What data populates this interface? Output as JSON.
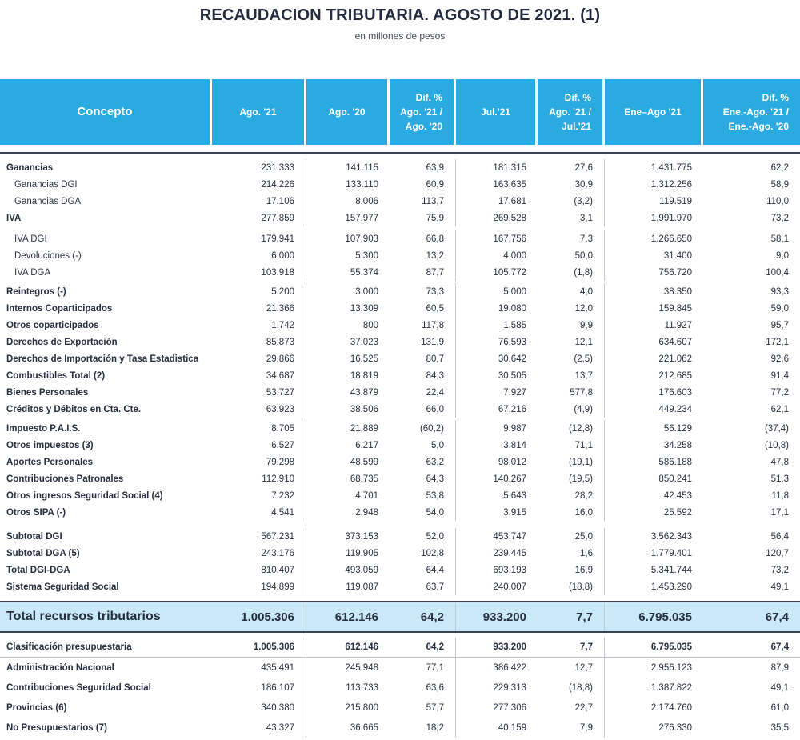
{
  "title": "RECAUDACION TRIBUTARIA. AGOSTO DE 2021. (1)",
  "subtitle": "en millones de pesos",
  "colors": {
    "header_bg": "#29abe2",
    "header_text": "#ffffff",
    "body_text": "#262e40",
    "total_bg": "#c9e9f8",
    "rule_dark": "#3b4254",
    "rule_light": "#c5cad2"
  },
  "table": {
    "headers": [
      {
        "lines": [
          "Concepto"
        ],
        "align": "center",
        "concept": true
      },
      {
        "lines": [
          "Ago. '21"
        ],
        "align": "center"
      },
      {
        "lines": [
          "Ago. '20"
        ],
        "align": "center"
      },
      {
        "lines": [
          "Dif. %",
          "Ago. '21 /",
          "Ago. '20"
        ],
        "align": "right"
      },
      {
        "lines": [
          "Jul.'21"
        ],
        "align": "center"
      },
      {
        "lines": [
          "Dif. %",
          "Ago. '21 /",
          "Jul.'21"
        ],
        "align": "right"
      },
      {
        "lines": [
          "Ene–Ago '21"
        ],
        "align": "center"
      },
      {
        "lines": [
          "Dif. %",
          "Ene.-Ago. '21 /",
          "Ene.-Ago. '20"
        ],
        "align": "right"
      }
    ],
    "rows": [
      {
        "label": "Ganancias",
        "style": "bold",
        "values": [
          "231.333",
          "141.115",
          "63,9",
          "181.315",
          "27,6",
          "1.431.775",
          "62,2"
        ]
      },
      {
        "label": "Ganancias DGI",
        "style": "sub",
        "values": [
          "214.226",
          "133.110",
          "60,9",
          "163.635",
          "30,9",
          "1.312.256",
          "58,9"
        ]
      },
      {
        "label": "Ganancias DGA",
        "style": "sub",
        "values": [
          "17.106",
          "8.006",
          "113,7",
          "17.681",
          "(3,2)",
          "119.519",
          "110,0"
        ]
      },
      {
        "label": "IVA",
        "style": "bold",
        "values": [
          "277.859",
          "157.977",
          "75,9",
          "269.528",
          "3,1",
          "1.991.970",
          "73,2"
        ]
      },
      {
        "label": "IVA DGI",
        "style": "sub",
        "gap": 5,
        "values": [
          "179.941",
          "107.903",
          "66,8",
          "167.756",
          "7,3",
          "1.266.650",
          "58,1"
        ]
      },
      {
        "label": "Devoluciones (-)",
        "style": "sub",
        "values": [
          "6.000",
          "5.300",
          "13,2",
          "4.000",
          "50,0",
          "31.400",
          "9,0"
        ]
      },
      {
        "label": "IVA DGA",
        "style": "sub",
        "values": [
          "103.918",
          "55.374",
          "87,7",
          "105.772",
          "(1,8)",
          "756.720",
          "100,4"
        ]
      },
      {
        "label": "Reintegros (-)",
        "style": "bold",
        "gap": 3,
        "values": [
          "5.200",
          "3.000",
          "73,3",
          "5.000",
          "4,0",
          "38.350",
          "93,3"
        ]
      },
      {
        "label": "Internos Coparticipados",
        "style": "bold",
        "values": [
          "21.366",
          "13.309",
          "60,5",
          "19.080",
          "12,0",
          "159.845",
          "59,0"
        ]
      },
      {
        "label": "Otros coparticipados",
        "style": "bold",
        "values": [
          "1.742",
          "800",
          "117,8",
          "1.585",
          "9,9",
          "11.927",
          "95,7"
        ]
      },
      {
        "label": "Derechos de Exportación",
        "style": "bold",
        "values": [
          "85.873",
          "37.023",
          "131,9",
          "76.593",
          "12,1",
          "634.607",
          "172,1"
        ]
      },
      {
        "label": "Derechos de Importación y Tasa Estadistica",
        "style": "bold",
        "values": [
          "29.866",
          "16.525",
          "80,7",
          "30.642",
          "(2,5)",
          "221.062",
          "92,6"
        ]
      },
      {
        "label": "Combustibles Total (2)",
        "style": "bold",
        "values": [
          "34.687",
          "18.819",
          "84,3",
          "30.505",
          "13,7",
          "212.685",
          "91,4"
        ]
      },
      {
        "label": "Bienes Personales",
        "style": "bold",
        "values": [
          "53.727",
          "43.879",
          "22,4",
          "7.927",
          "577,8",
          "176.603",
          "77,2"
        ]
      },
      {
        "label": "Créditos y Débitos en Cta. Cte.",
        "style": "bold",
        "values": [
          "63.923",
          "38.506",
          "66,0",
          "67.216",
          "(4,9)",
          "449.234",
          "62,1"
        ]
      },
      {
        "label": "Impuesto P.A.I.S.",
        "style": "bold",
        "gap": 3,
        "values": [
          "8.705",
          "21.889",
          "(60,2)",
          "9.987",
          "(12,8)",
          "56.129",
          "(37,4)"
        ]
      },
      {
        "label": "Otros impuestos  (3)",
        "style": "bold",
        "values": [
          "6.527",
          "6.217",
          "5,0",
          "3.814",
          "71,1",
          "34.258",
          "(10,8)"
        ]
      },
      {
        "label": "Aportes Personales",
        "style": "bold",
        "values": [
          "79.298",
          "48.599",
          "63,2",
          "98.012",
          "(19,1)",
          "586.188",
          "47,8"
        ]
      },
      {
        "label": "Contribuciones Patronales",
        "style": "bold",
        "values": [
          "112.910",
          "68.735",
          "64,3",
          "140.267",
          "(19,5)",
          "850.241",
          "51,3"
        ]
      },
      {
        "label": "Otros ingresos Seguridad Social  (4)",
        "style": "bold",
        "values": [
          "7.232",
          "4.701",
          "53,8",
          "5.643",
          "28,2",
          "42.453",
          "11,8"
        ]
      },
      {
        "label": "Otros SIPA (-)",
        "style": "bold",
        "values": [
          "4.541",
          "2.948",
          "54,0",
          "3.915",
          "16,0",
          "25.592",
          "17,1"
        ]
      },
      {
        "label": "Subtotal DGI",
        "style": "bold",
        "gap": 9,
        "values": [
          "567.231",
          "373.153",
          "52,0",
          "453.747",
          "25,0",
          "3.562.343",
          "56,4"
        ]
      },
      {
        "label": "Subtotal DGA  (5)",
        "style": "bold",
        "values": [
          "243.176",
          "119.905",
          "102,8",
          "239.445",
          "1,6",
          "1.779.401",
          "120,7"
        ]
      },
      {
        "label": "Total DGI-DGA",
        "style": "bold",
        "values": [
          "810.407",
          "493.059",
          "64,4",
          "693.193",
          "16,9",
          "5.341.744",
          "73,2"
        ]
      },
      {
        "label": "Sistema Seguridad Social",
        "style": "bold",
        "values": [
          "194.899",
          "119.087",
          "63,7",
          "240.007",
          "(18,8)",
          "1.453.290",
          "49,1"
        ]
      }
    ],
    "total_row": {
      "label": "Total recursos tributarios",
      "values": [
        "1.005.306",
        "612.146",
        "64,2",
        "933.200",
        "7,7",
        "6.795.035",
        "67,4"
      ]
    },
    "footer_rows": [
      {
        "label": "Clasificación presupuestaria",
        "bold_values": true,
        "rule_below": true,
        "values": [
          "1.005.306",
          "612.146",
          "64,2",
          "933.200",
          "7,7",
          "6.795.035",
          "67,4"
        ]
      },
      {
        "label": "Administración Nacional",
        "values": [
          "435.491",
          "245.948",
          "77,1",
          "386.422",
          "12,7",
          "2.956.123",
          "87,9"
        ]
      },
      {
        "label": "Contribuciones Seguridad Social",
        "values": [
          "186.107",
          "113.733",
          "63,6",
          "229.313",
          "(18,8)",
          "1.387.822",
          "49,1"
        ]
      },
      {
        "label": "Provincias (6)",
        "values": [
          "340.380",
          "215.800",
          "57,7",
          "277.306",
          "22,7",
          "2.174.760",
          "61,0"
        ]
      },
      {
        "label": "No Presupuestarios (7)",
        "values": [
          "43.327",
          "36.665",
          "18,2",
          "40.159",
          "7,9",
          "276.330",
          "35,5"
        ]
      }
    ]
  }
}
